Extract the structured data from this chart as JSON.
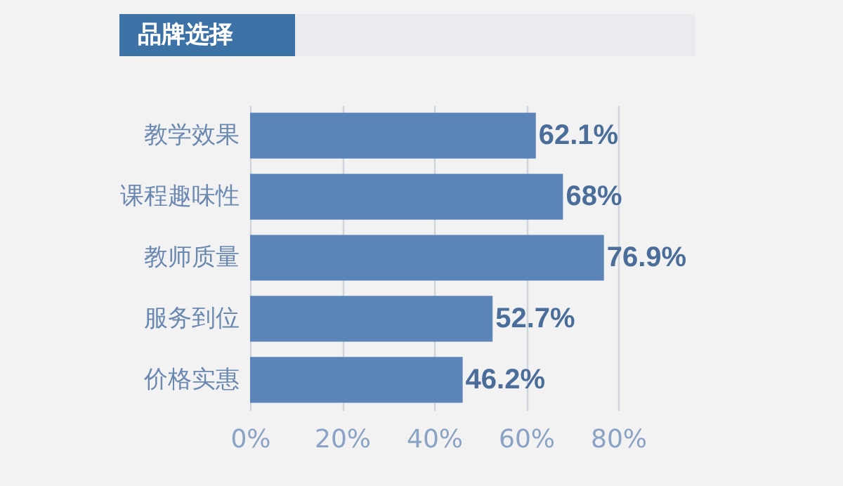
{
  "chart_data": {
    "type": "bar",
    "orientation": "horizontal",
    "title": "品牌选择",
    "categories": [
      "教学效果",
      "课程趣味性",
      "教师质量",
      "服务到位",
      "价格实惠"
    ],
    "values": [
      62.1,
      68,
      76.9,
      52.7,
      46.2
    ],
    "value_labels": [
      "62.1%",
      "68%",
      "76.9%",
      "52.7%",
      "46.2%"
    ],
    "color": "#5b84b9",
    "xlim": [
      0,
      80
    ],
    "xticks": [
      {
        "value": 0,
        "label": "0%"
      },
      {
        "value": 20,
        "label": "20%"
      },
      {
        "value": 40,
        "label": "40%"
      },
      {
        "value": 60,
        "label": "60%"
      },
      {
        "value": 80,
        "label": "80%"
      }
    ],
    "grid": "x"
  }
}
